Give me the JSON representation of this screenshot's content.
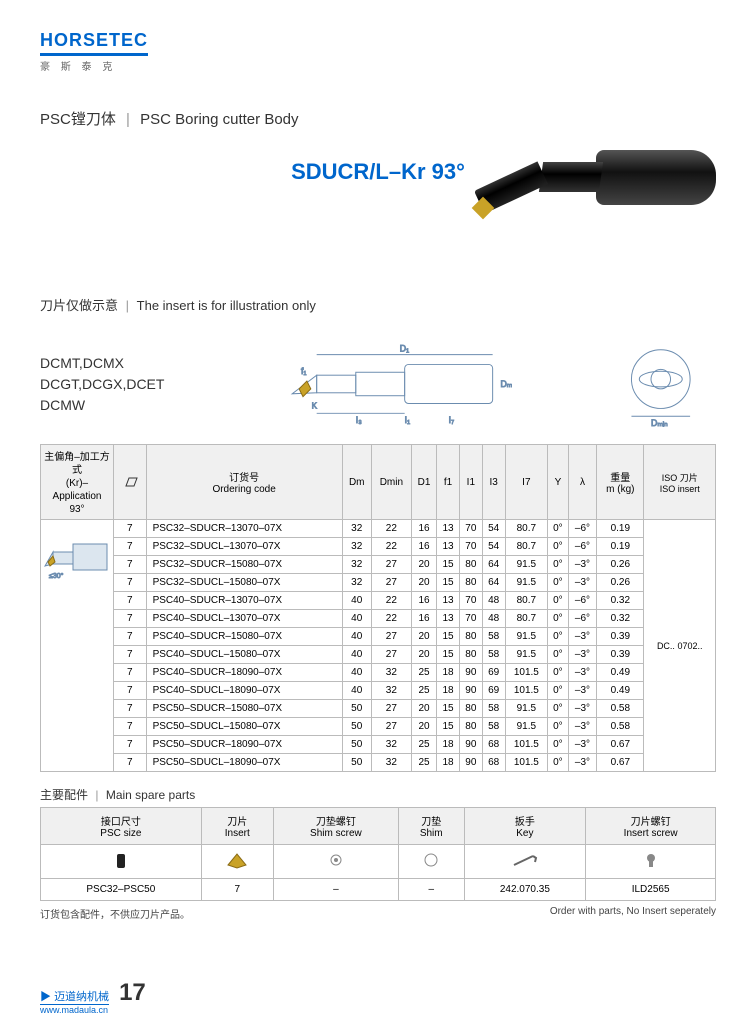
{
  "brand": {
    "name": "HORSETEC",
    "sub": "豪 斯 泰 克"
  },
  "titles": {
    "psc_cn": "PSC镗刀体",
    "psc_en": "PSC Boring cutter Body",
    "product": "SDUCR/L–Kr 93°",
    "note_cn": "刀片仅做示意",
    "note_en": "The insert is for illustration only",
    "inserts_l1": "DCMT,DCMX",
    "inserts_l2": "DCGT,DCGX,DCET",
    "inserts_l3": "DCMW",
    "spare_cn": "主要配件",
    "spare_en": "Main spare parts",
    "footnote_cn": "订货包含配件，不供应刀片产品。",
    "footnote_en": "Order with parts, No Insert seperately",
    "footer_cn": "迈道纳机械",
    "footer_site": "www.madaula.cn",
    "page_no": "17"
  },
  "spec_table": {
    "headers": {
      "app_cn": "主偏角–加工方式",
      "app_en": "(Kr)–Application",
      "app_angle": "93°",
      "icon": "",
      "order_cn": "订货号",
      "order_en": "Ordering code",
      "Dm": "Dm",
      "Dmin": "Dmin",
      "D1": "D1",
      "f1": "f1",
      "I1": "I1",
      "I3": "I3",
      "I7": "I7",
      "Y": "Y",
      "lambda": "λ",
      "wt_cn": "重量",
      "wt_en": "m (kg)",
      "iso_cn": "ISO 刀片",
      "iso_en": "ISO insert"
    },
    "iso_value": "DC.. 0702..",
    "rows": [
      {
        "n": "7",
        "code": "PSC32–SDUCR–13070–07X",
        "Dm": "32",
        "Dmin": "22",
        "D1": "16",
        "f1": "13",
        "I1": "70",
        "I3": "54",
        "I7": "80.7",
        "Y": "0°",
        "L": "–6°",
        "kg": "0.19"
      },
      {
        "n": "7",
        "code": "PSC32–SDUCL–13070–07X",
        "Dm": "32",
        "Dmin": "22",
        "D1": "16",
        "f1": "13",
        "I1": "70",
        "I3": "54",
        "I7": "80.7",
        "Y": "0°",
        "L": "–6°",
        "kg": "0.19"
      },
      {
        "n": "7",
        "code": "PSC32–SDUCR–15080–07X",
        "Dm": "32",
        "Dmin": "27",
        "D1": "20",
        "f1": "15",
        "I1": "80",
        "I3": "64",
        "I7": "91.5",
        "Y": "0°",
        "L": "–3°",
        "kg": "0.26"
      },
      {
        "n": "7",
        "code": "PSC32–SDUCL–15080–07X",
        "Dm": "32",
        "Dmin": "27",
        "D1": "20",
        "f1": "15",
        "I1": "80",
        "I3": "64",
        "I7": "91.5",
        "Y": "0°",
        "L": "–3°",
        "kg": "0.26"
      },
      {
        "n": "7",
        "code": "PSC40–SDUCR–13070–07X",
        "Dm": "40",
        "Dmin": "22",
        "D1": "16",
        "f1": "13",
        "I1": "70",
        "I3": "48",
        "I7": "80.7",
        "Y": "0°",
        "L": "–6°",
        "kg": "0.32"
      },
      {
        "n": "7",
        "code": "PSC40–SDUCL–13070–07X",
        "Dm": "40",
        "Dmin": "22",
        "D1": "16",
        "f1": "13",
        "I1": "70",
        "I3": "48",
        "I7": "80.7",
        "Y": "0°",
        "L": "–6°",
        "kg": "0.32"
      },
      {
        "n": "7",
        "code": "PSC40–SDUCR–15080–07X",
        "Dm": "40",
        "Dmin": "27",
        "D1": "20",
        "f1": "15",
        "I1": "80",
        "I3": "58",
        "I7": "91.5",
        "Y": "0°",
        "L": "–3°",
        "kg": "0.39"
      },
      {
        "n": "7",
        "code": "PSC40–SDUCL–15080–07X",
        "Dm": "40",
        "Dmin": "27",
        "D1": "20",
        "f1": "15",
        "I1": "80",
        "I3": "58",
        "I7": "91.5",
        "Y": "0°",
        "L": "–3°",
        "kg": "0.39"
      },
      {
        "n": "7",
        "code": "PSC40–SDUCR–18090–07X",
        "Dm": "40",
        "Dmin": "32",
        "D1": "25",
        "f1": "18",
        "I1": "90",
        "I3": "69",
        "I7": "101.5",
        "Y": "0°",
        "L": "–3°",
        "kg": "0.49"
      },
      {
        "n": "7",
        "code": "PSC40–SDUCL–18090–07X",
        "Dm": "40",
        "Dmin": "32",
        "D1": "25",
        "f1": "18",
        "I1": "90",
        "I3": "69",
        "I7": "101.5",
        "Y": "0°",
        "L": "–3°",
        "kg": "0.49"
      },
      {
        "n": "7",
        "code": "PSC50–SDUCR–15080–07X",
        "Dm": "50",
        "Dmin": "27",
        "D1": "20",
        "f1": "15",
        "I1": "80",
        "I3": "58",
        "I7": "91.5",
        "Y": "0°",
        "L": "–3°",
        "kg": "0.58"
      },
      {
        "n": "7",
        "code": "PSC50–SDUCL–15080–07X",
        "Dm": "50",
        "Dmin": "27",
        "D1": "20",
        "f1": "15",
        "I1": "80",
        "I3": "58",
        "I7": "91.5",
        "Y": "0°",
        "L": "–3°",
        "kg": "0.58"
      },
      {
        "n": "7",
        "code": "PSC50–SDUCR–18090–07X",
        "Dm": "50",
        "Dmin": "32",
        "D1": "25",
        "f1": "18",
        "I1": "90",
        "I3": "68",
        "I7": "101.5",
        "Y": "0°",
        "L": "–3°",
        "kg": "0.67"
      },
      {
        "n": "7",
        "code": "PSC50–SDUCL–18090–07X",
        "Dm": "50",
        "Dmin": "32",
        "D1": "25",
        "f1": "18",
        "I1": "90",
        "I3": "68",
        "I7": "101.5",
        "Y": "0°",
        "L": "–3°",
        "kg": "0.67"
      }
    ]
  },
  "spare_table": {
    "headers": {
      "size_cn": "接口尺寸",
      "size_en": "PSC size",
      "insert_cn": "刀片",
      "insert_en": "Insert",
      "shim_screw_cn": "刀垫螺钉",
      "shim_screw_en": "Shim screw",
      "shim_cn": "刀垫",
      "shim_en": "Shim",
      "key_cn": "扳手",
      "key_en": "Key",
      "iscrew_cn": "刀片螺钉",
      "iscrew_en": "Insert screw"
    },
    "row": {
      "size": "PSC32–PSC50",
      "insert": "7",
      "shim_screw": "–",
      "shim": "–",
      "key": "242.070.35",
      "iscrew": "ILD2565"
    }
  },
  "colors": {
    "brand": "#0066cc",
    "text": "#333333",
    "border": "#bbbbbb",
    "header_bg": "#f0f0f0",
    "insert_gold": "#c9a227",
    "diagram_line": "#6b8caf"
  }
}
